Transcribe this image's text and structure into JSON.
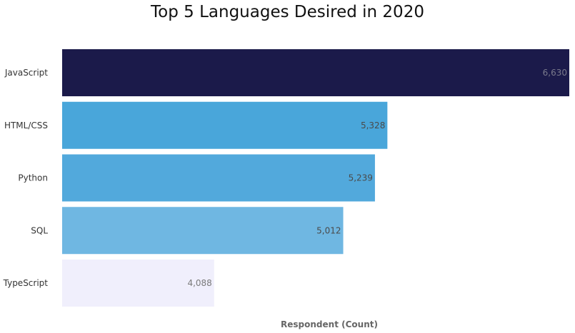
{
  "chart_data": {
    "type": "bar",
    "orientation": "horizontal",
    "title": "Top 5 Languages Desired in 2020",
    "xlabel": "Respondent (Count)",
    "ylabel": "",
    "categories": [
      "JavaScript",
      "HTML/CSS",
      "Python",
      "SQL",
      "TypeScript"
    ],
    "values": [
      6630,
      5328,
      5239,
      5012,
      4088
    ],
    "value_labels": [
      "6,630",
      "5,328",
      "5,239",
      "5,012",
      "4,088"
    ],
    "colors": [
      "#1b1a4a",
      "#49a6da",
      "#52a9dc",
      "#6fb7e2",
      "#f0effc"
    ],
    "label_colors": [
      "#7a7a8c",
      "#4a4a4a",
      "#4a4a4a",
      "#4a4a4a",
      "#7a7a7a"
    ],
    "axis_start": 3000,
    "grid": false,
    "legend": "none"
  }
}
